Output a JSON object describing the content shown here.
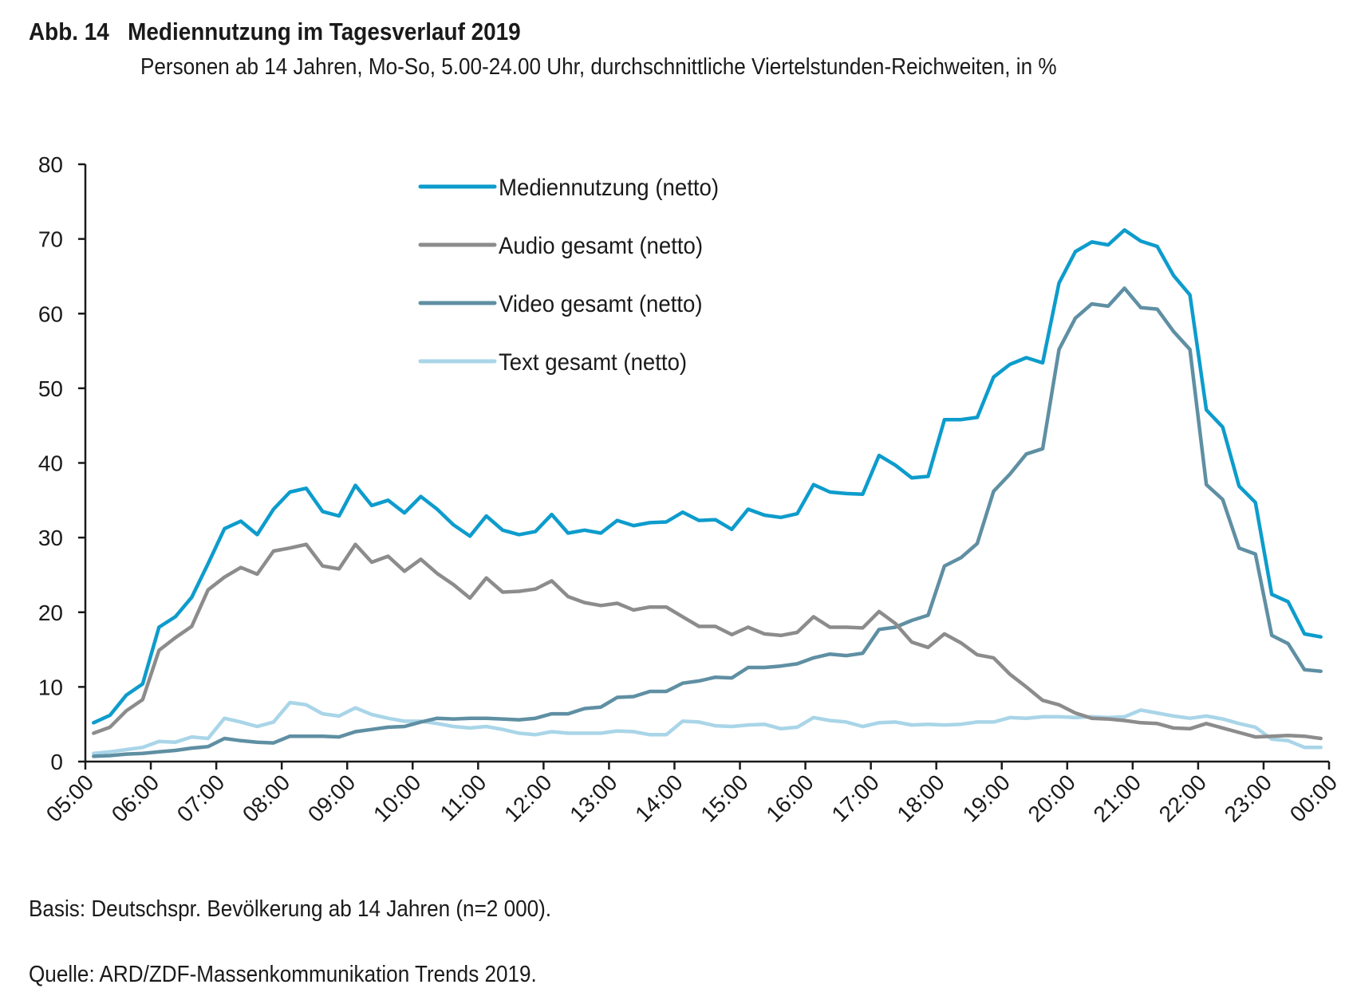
{
  "header": {
    "figure_number": "Abb. 14",
    "title": "Mediennutzung im Tagesverlauf 2019",
    "subtitle": "Personen ab 14 Jahren, Mo-So, 5.00-24.00 Uhr, durchschnittliche Viertelstunden-Reichweiten, in %"
  },
  "footer": {
    "basis": "Basis: Deutschspr. Bevölkerung ab 14 Jahren (n=2 000).",
    "source": "Quelle: ARD/ZDF-Massenkommunikation Trends 2019."
  },
  "chart_data": {
    "type": "line",
    "title": "Mediennutzung im Tagesverlauf 2019",
    "xlabel": "",
    "ylabel": "",
    "ylim": [
      0,
      80
    ],
    "yticks": [
      0,
      10,
      20,
      30,
      40,
      50,
      60,
      70,
      80
    ],
    "xlim": [
      5.0,
      24.0
    ],
    "x_unit": "hour of day",
    "xticks": [
      {
        "value": 5,
        "label": "05:00"
      },
      {
        "value": 6,
        "label": "06:00"
      },
      {
        "value": 7,
        "label": "07:00"
      },
      {
        "value": 8,
        "label": "08:00"
      },
      {
        "value": 9,
        "label": "09:00"
      },
      {
        "value": 10,
        "label": "10:00"
      },
      {
        "value": 11,
        "label": "11:00"
      },
      {
        "value": 12,
        "label": "12:00"
      },
      {
        "value": 13,
        "label": "13:00"
      },
      {
        "value": 14,
        "label": "14:00"
      },
      {
        "value": 15,
        "label": "15:00"
      },
      {
        "value": 16,
        "label": "16:00"
      },
      {
        "value": 17,
        "label": "17:00"
      },
      {
        "value": 18,
        "label": "18:00"
      },
      {
        "value": 19,
        "label": "19:00"
      },
      {
        "value": 20,
        "label": "20:00"
      },
      {
        "value": 21,
        "label": "21:00"
      },
      {
        "value": 22,
        "label": "22:00"
      },
      {
        "value": 23,
        "label": "23:00"
      },
      {
        "value": 24,
        "label": "00:00"
      }
    ],
    "grid": false,
    "legend_position": "top-center",
    "x": [
      5.125,
      5.375,
      5.625,
      5.875,
      6.125,
      6.375,
      6.625,
      6.875,
      7.125,
      7.375,
      7.625,
      7.875,
      8.125,
      8.375,
      8.625,
      8.875,
      9.125,
      9.375,
      9.625,
      9.875,
      10.125,
      10.375,
      10.625,
      10.875,
      11.125,
      11.375,
      11.625,
      11.875,
      12.125,
      12.375,
      12.625,
      12.875,
      13.125,
      13.375,
      13.625,
      13.875,
      14.125,
      14.375,
      14.625,
      14.875,
      15.125,
      15.375,
      15.625,
      15.875,
      16.125,
      16.375,
      16.625,
      16.875,
      17.125,
      17.375,
      17.625,
      17.875,
      18.125,
      18.375,
      18.625,
      18.875,
      19.125,
      19.375,
      19.625,
      19.875,
      20.125,
      20.375,
      20.625,
      20.875,
      21.125,
      21.375,
      21.625,
      21.875,
      22.125,
      22.375,
      22.625,
      22.875,
      23.125,
      23.375,
      23.625,
      23.875
    ],
    "series": [
      {
        "name": "Mediennutzung (netto)",
        "color": "#0d9ccc",
        "values": [
          5.2,
          6.2,
          8.9,
          10.4,
          18,
          19.4,
          22,
          26.5,
          31.2,
          32.2,
          30.4,
          33.8,
          36.1,
          36.6,
          33.5,
          32.9,
          37,
          34.3,
          35,
          33.3,
          35.5,
          33.8,
          31.7,
          30.2,
          32.9,
          31,
          30.4,
          30.8,
          33.1,
          30.6,
          31,
          30.6,
          32.3,
          31.6,
          32,
          32.1,
          33.4,
          32.3,
          32.4,
          31.1,
          33.8,
          33,
          32.7,
          33.2,
          37.1,
          36.1,
          35.9,
          35.8,
          41,
          39.7,
          38,
          38.2,
          45.8,
          45.8,
          46.1,
          51.5,
          53.2,
          54.1,
          53.4,
          64.1,
          68.3,
          69.6,
          69.2,
          71.2,
          69.7,
          69,
          65.1,
          62.5,
          47.1,
          44.8,
          36.9,
          34.7,
          22.4,
          21.4,
          17.1,
          16.7
        ]
      },
      {
        "name": "Audio gesamt (netto)",
        "color": "#8c8c8c",
        "values": [
          3.8,
          4.6,
          6.8,
          8.3,
          14.9,
          16.6,
          18.1,
          23,
          24.7,
          26,
          25.1,
          28.2,
          28.6,
          29.1,
          26.2,
          25.8,
          29.1,
          26.7,
          27.5,
          25.5,
          27.1,
          25.2,
          23.7,
          21.9,
          24.6,
          22.7,
          22.8,
          23.1,
          24.2,
          22.1,
          21.3,
          20.9,
          21.2,
          20.3,
          20.7,
          20.7,
          19.4,
          18.1,
          18.1,
          17,
          18,
          17.1,
          16.9,
          17.3,
          19.4,
          18,
          18,
          17.9,
          20.1,
          18.5,
          16,
          15.3,
          17.1,
          15.9,
          14.3,
          13.9,
          11.7,
          10,
          8.2,
          7.6,
          6.5,
          5.8,
          5.7,
          5.5,
          5.2,
          5.1,
          4.5,
          4.4,
          5.1,
          4.5,
          3.9,
          3.3,
          3.4,
          3.5,
          3.4,
          3.1
        ]
      },
      {
        "name": "Video gesamt (netto)",
        "color": "#5f8fa3",
        "values": [
          0.7,
          0.8,
          1,
          1.1,
          1.3,
          1.5,
          1.8,
          2,
          3.1,
          2.8,
          2.6,
          2.5,
          3.4,
          3.4,
          3.4,
          3.3,
          4,
          4.3,
          4.6,
          4.7,
          5.3,
          5.8,
          5.7,
          5.8,
          5.8,
          5.7,
          5.6,
          5.8,
          6.4,
          6.4,
          7.1,
          7.3,
          8.6,
          8.7,
          9.4,
          9.4,
          10.5,
          10.8,
          11.3,
          11.2,
          12.6,
          12.6,
          12.8,
          13.1,
          13.9,
          14.4,
          14.2,
          14.5,
          17.7,
          18,
          18.9,
          19.6,
          26.2,
          27.3,
          29.2,
          36.2,
          38.5,
          41.2,
          41.9,
          55.2,
          59.4,
          61.3,
          61,
          63.4,
          60.8,
          60.6,
          57.6,
          55.2,
          37.1,
          35.1,
          28.6,
          27.8,
          16.9,
          15.8,
          12.3,
          12.1
        ]
      },
      {
        "name": "Text gesamt (netto)",
        "color": "#a9d5e8",
        "values": [
          1.1,
          1.3,
          1.6,
          1.9,
          2.7,
          2.6,
          3.3,
          3.1,
          5.8,
          5.3,
          4.7,
          5.3,
          7.9,
          7.6,
          6.4,
          6.1,
          7.2,
          6.3,
          5.8,
          5.4,
          5.4,
          5.1,
          4.7,
          4.5,
          4.7,
          4.3,
          3.8,
          3.6,
          4,
          3.8,
          3.8,
          3.8,
          4.1,
          4,
          3.6,
          3.6,
          5.4,
          5.3,
          4.8,
          4.7,
          4.9,
          5,
          4.4,
          4.6,
          5.9,
          5.5,
          5.3,
          4.7,
          5.2,
          5.3,
          4.9,
          5,
          4.9,
          5,
          5.3,
          5.3,
          5.9,
          5.8,
          6,
          6,
          5.9,
          6,
          5.9,
          6,
          6.9,
          6.5,
          6.1,
          5.8,
          6.1,
          5.7,
          5.1,
          4.6,
          3,
          2.8,
          1.9,
          1.9
        ]
      }
    ]
  }
}
